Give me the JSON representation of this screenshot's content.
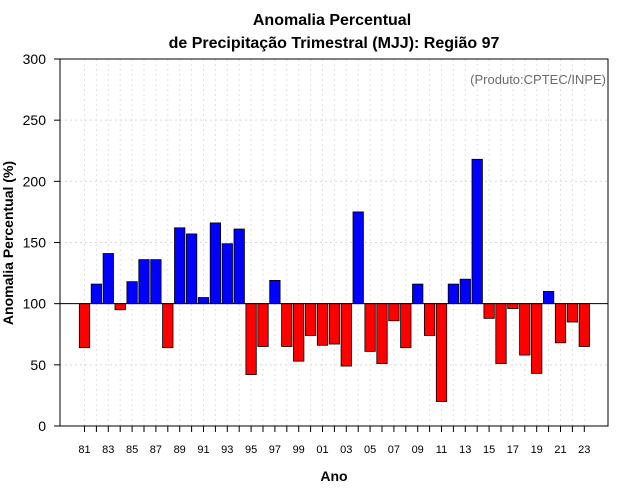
{
  "chart_data": {
    "type": "bar",
    "title_line1": "Anomalia Percentual",
    "title_line2": "de Precipitação Trimestral (MJJ): Região 97",
    "xlabel": "Ano",
    "ylabel": "Anomalia Percentual (%)",
    "credit": "(Produto:CPTEC/INPE)",
    "ylim": [
      0,
      300
    ],
    "yticks": [
      0,
      50,
      100,
      150,
      200,
      250,
      300
    ],
    "baseline": 100,
    "grid": true,
    "colors": {
      "above": "#0000ff",
      "below": "#ff0000"
    },
    "years": [
      1981,
      1982,
      1983,
      1984,
      1985,
      1986,
      1987,
      1988,
      1989,
      1990,
      1991,
      1992,
      1993,
      1994,
      1995,
      1996,
      1997,
      1998,
      1999,
      2000,
      2001,
      2002,
      2003,
      2004,
      2005,
      2006,
      2007,
      2008,
      2009,
      2010,
      2011,
      2012,
      2013,
      2014,
      2015,
      2016,
      2017,
      2018,
      2019,
      2020,
      2021,
      2022,
      2023
    ],
    "xtick_labels": [
      "81",
      "83",
      "85",
      "87",
      "89",
      "91",
      "93",
      "95",
      "97",
      "99",
      "01",
      "03",
      "05",
      "07",
      "09",
      "11",
      "13",
      "15",
      "17",
      "19",
      "21",
      "23"
    ],
    "values": [
      64,
      116,
      141,
      95,
      118,
      136,
      136,
      64,
      162,
      157,
      105,
      166,
      149,
      161,
      42,
      65,
      119,
      65,
      53,
      74,
      66,
      67,
      49,
      175,
      61,
      51,
      86,
      64,
      116,
      74,
      20,
      116,
      120,
      218,
      88,
      51,
      96,
      58,
      43,
      110,
      68,
      85,
      65
    ]
  }
}
